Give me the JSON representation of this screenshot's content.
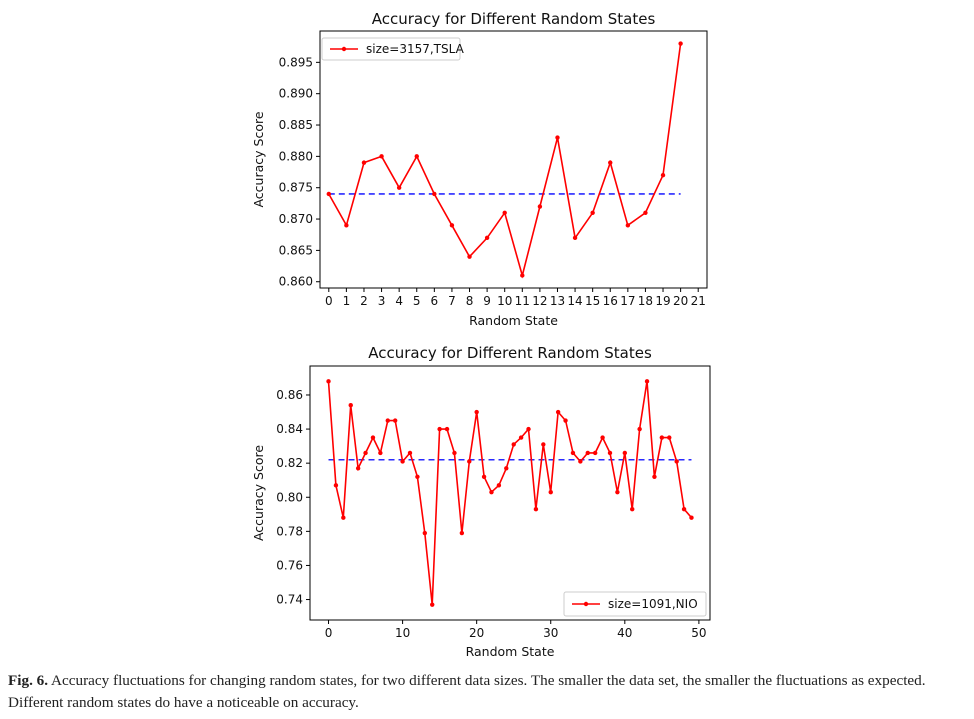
{
  "chart_data": [
    {
      "type": "line",
      "title": "Accuracy for Different Random States",
      "xlabel": "Random State",
      "ylabel": "Accuracy Score",
      "xlim": [
        -0.5,
        21.5
      ],
      "ylim": [
        0.859,
        0.9
      ],
      "xticks": [
        "0",
        "1",
        "2",
        "3",
        "4",
        "5",
        "6",
        "7",
        "8",
        "9",
        "10",
        "11",
        "12",
        "13",
        "14",
        "15",
        "16",
        "17",
        "18",
        "19",
        "20",
        "21"
      ],
      "yticks": [
        "0.860",
        "0.865",
        "0.870",
        "0.875",
        "0.880",
        "0.885",
        "0.890",
        "0.895"
      ],
      "series": [
        {
          "name": "size=3157,TSLA",
          "color": "#ff0000",
          "x": [
            0,
            1,
            2,
            3,
            4,
            5,
            6,
            7,
            8,
            9,
            10,
            11,
            12,
            13,
            14,
            15,
            16,
            17,
            18,
            19,
            20
          ],
          "values": [
            0.874,
            0.869,
            0.879,
            0.88,
            0.875,
            0.88,
            0.874,
            0.869,
            0.864,
            0.867,
            0.871,
            0.861,
            0.872,
            0.883,
            0.867,
            0.871,
            0.879,
            0.869,
            0.871,
            0.877,
            0.898
          ]
        }
      ],
      "mean_line": {
        "value": 0.874,
        "color": "#2a2aff",
        "style": "dashed"
      },
      "legend": "top-left",
      "grid": false
    },
    {
      "type": "line",
      "title": "Accuracy for Different Random States",
      "xlabel": "Random State",
      "ylabel": "Accuracy Score",
      "xlim": [
        -2.5,
        51.5
      ],
      "ylim": [
        0.728,
        0.877
      ],
      "xticks": [
        "0",
        "10",
        "20",
        "30",
        "40",
        "50"
      ],
      "xtick_values": [
        0,
        10,
        20,
        30,
        40,
        50
      ],
      "yticks": [
        "0.74",
        "0.76",
        "0.78",
        "0.80",
        "0.82",
        "0.84",
        "0.86"
      ],
      "series": [
        {
          "name": "size=1091,NIO",
          "color": "#ff0000",
          "x": [
            0,
            1,
            2,
            3,
            4,
            5,
            6,
            7,
            8,
            9,
            10,
            11,
            12,
            13,
            14,
            15,
            16,
            17,
            18,
            19,
            20,
            21,
            22,
            23,
            24,
            25,
            26,
            27,
            28,
            29,
            30,
            31,
            32,
            33,
            34,
            35,
            36,
            37,
            38,
            39,
            40,
            41,
            42,
            43,
            44,
            45,
            46,
            47,
            48,
            49
          ],
          "values": [
            0.868,
            0.807,
            0.788,
            0.854,
            0.817,
            0.826,
            0.835,
            0.826,
            0.845,
            0.845,
            0.821,
            0.826,
            0.812,
            0.779,
            0.737,
            0.84,
            0.84,
            0.826,
            0.779,
            0.821,
            0.85,
            0.812,
            0.803,
            0.807,
            0.817,
            0.831,
            0.835,
            0.84,
            0.793,
            0.831,
            0.803,
            0.85,
            0.845,
            0.826,
            0.821,
            0.826,
            0.826,
            0.835,
            0.826,
            0.803,
            0.826,
            0.793,
            0.84,
            0.868,
            0.812,
            0.835,
            0.835,
            0.821,
            0.793,
            0.788
          ]
        }
      ],
      "mean_line": {
        "value": 0.822,
        "color": "#2a2aff",
        "style": "dashed"
      },
      "legend": "bottom-right",
      "grid": false
    }
  ],
  "caption": {
    "label": "Fig. 6.",
    "text": "Accuracy fluctuations for changing random states, for two different data sizes. The smaller the data set, the smaller the fluctuations as expected. Different random states do have a noticeable on accuracy."
  }
}
